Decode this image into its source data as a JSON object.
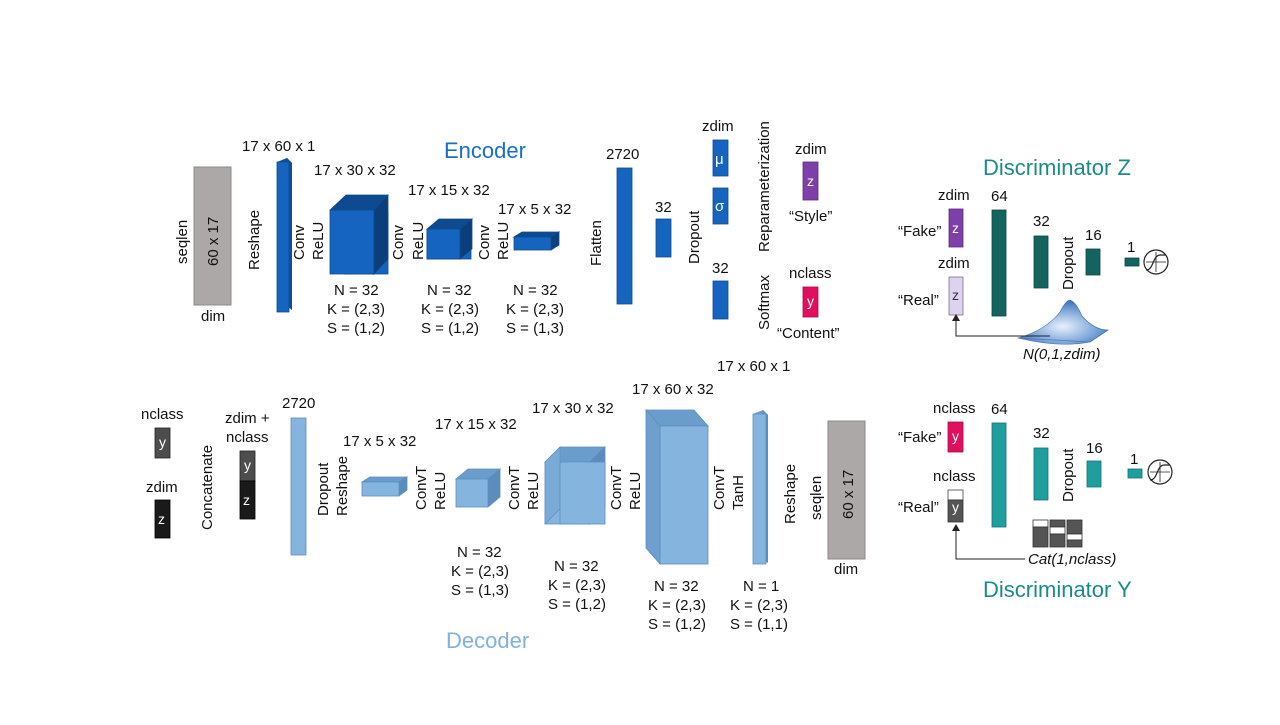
{
  "encoder": {
    "title": "Encoder",
    "input": {
      "text": "60 x 17",
      "top": "seqlen",
      "bottom": "dim"
    },
    "reshape": {
      "op": "Reshape",
      "shape": "17 x 60 x 1"
    },
    "conv1": {
      "op1": "Conv",
      "op2": "ReLU",
      "shape": "17 x 30 x 32",
      "n": "N = 32",
      "k": "K = (2,3)",
      "s": "S = (1,2)"
    },
    "conv2": {
      "op1": "Conv",
      "op2": "ReLU",
      "shape": "17 x 15 x 32",
      "n": "N = 32",
      "k": "K = (2,3)",
      "s": "S = (1,2)"
    },
    "conv3": {
      "op1": "Conv",
      "op2": "ReLU",
      "shape": "17 x 5 x 32",
      "n": "N = 32",
      "k": "K = (2,3)",
      "s": "S = (1,3)"
    },
    "flatten": {
      "op": "Flatten",
      "size": "2720"
    },
    "dense": {
      "size": "32"
    },
    "dropout": {
      "op": "Dropout"
    },
    "mu": {
      "label": "zdim",
      "symbol": "μ"
    },
    "sigma": {
      "symbol": "σ"
    },
    "softmax_in": {
      "size": "32"
    },
    "reparam": {
      "op": "Reparameterization"
    },
    "softmax": {
      "op": "Softmax"
    },
    "z_out": {
      "label": "zdim",
      "symbol": "z",
      "caption": "“Style”"
    },
    "y_out": {
      "label": "nclass",
      "symbol": "y",
      "caption": "“Content”"
    }
  },
  "decoder": {
    "title": "Decoder",
    "y_in": {
      "label": "nclass",
      "symbol": "y"
    },
    "z_in": {
      "label": "zdim",
      "symbol": "z"
    },
    "concat": {
      "op": "Concatenate",
      "label1": "zdim +",
      "label2": "nclass",
      "y": "y",
      "z": "z"
    },
    "dense": {
      "size": "2720"
    },
    "dropout_reshape": {
      "op1": "Dropout",
      "op2": "Reshape",
      "shape": "17 x 5 x 32"
    },
    "convt1": {
      "op1": "ConvT",
      "op2": "ReLU",
      "shape": "17 x 15 x 32",
      "n": "N = 32",
      "k": "K = (2,3)",
      "s": "S = (1,3)"
    },
    "convt2": {
      "op1": "ConvT",
      "op2": "ReLU",
      "shape": "17 x 30 x 32",
      "n": "N = 32",
      "k": "K = (2,3)",
      "s": "S = (1,2)"
    },
    "convt3": {
      "op1": "ConvT",
      "op2": "ReLU",
      "shape": "17 x 60 x 32",
      "n": "N = 32",
      "k": "K = (2,3)",
      "s": "S = (1,2)"
    },
    "convt4": {
      "op1": "ConvT",
      "op2": "TanH",
      "shape": "17 x 60 x 1",
      "n": "N = 1",
      "k": "K = (2,3)",
      "s": "S = (1,1)"
    },
    "reshape": {
      "op": "Reshape"
    },
    "output": {
      "text": "60 x 17",
      "side": "seqlen",
      "bottom": "dim"
    }
  },
  "disc_z": {
    "title": "Discriminator Z",
    "fake": {
      "label": "zdim",
      "caption": "“Fake”",
      "symbol": "z"
    },
    "real": {
      "label": "zdim",
      "caption": "“Real”",
      "symbol": "z"
    },
    "l1": "64",
    "l2": "32",
    "dropout": "Dropout",
    "l3": "16",
    "out": "1",
    "prior": "N(0,1,zdim)"
  },
  "disc_y": {
    "title": "Discriminator Y",
    "fake": {
      "label": "nclass",
      "caption": "“Fake”",
      "symbol": "y"
    },
    "real": {
      "label": "nclass",
      "caption": "“Real”",
      "symbol": "y"
    },
    "l1": "64",
    "l2": "32",
    "dropout": "Dropout",
    "l3": "16",
    "out": "1",
    "prior": "Cat(1,nclass)"
  },
  "colors": {
    "enc_blue": "#1565c0",
    "dec_blue": "#85b5df",
    "gray": "#aba8a7",
    "purple": "#7e3fa8",
    "magenta": "#e0105e",
    "teal_dark": "#13645f",
    "teal": "#1f9e9e"
  }
}
